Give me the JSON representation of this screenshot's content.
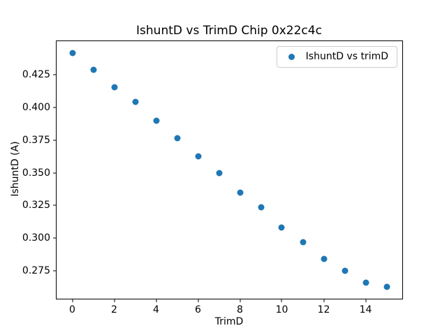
{
  "colors": {
    "marker": "#1f77b4",
    "spine": "#000000",
    "legend_border": "#cccccc",
    "background": "#ffffff",
    "text": "#000000"
  },
  "chart_data": {
    "type": "scatter",
    "title": "IshuntD vs TrimD Chip 0x22c4c",
    "xlabel": "TrimD",
    "ylabel": "IshuntD (A)",
    "series": [
      {
        "name": "IshuntD vs trimD",
        "x": [
          0,
          1,
          2,
          3,
          4,
          5,
          6,
          7,
          8,
          9,
          10,
          11,
          12,
          13,
          14,
          15
        ],
        "y": [
          0.4415,
          0.4285,
          0.415,
          0.404,
          0.3895,
          0.3765,
          0.3625,
          0.3495,
          0.335,
          0.3235,
          0.308,
          0.297,
          0.284,
          0.275,
          0.2662,
          0.2628
        ]
      }
    ],
    "xlim": [
      -0.75,
      15.75
    ],
    "ylim": [
      0.2539,
      0.4504
    ],
    "xticks": [
      0,
      2,
      4,
      6,
      8,
      10,
      12,
      14
    ],
    "yticks": [
      0.275,
      0.3,
      0.325,
      0.35,
      0.375,
      0.4,
      0.425
    ],
    "ytick_decimals": 3,
    "grid": false,
    "legend_position": "upper right"
  }
}
